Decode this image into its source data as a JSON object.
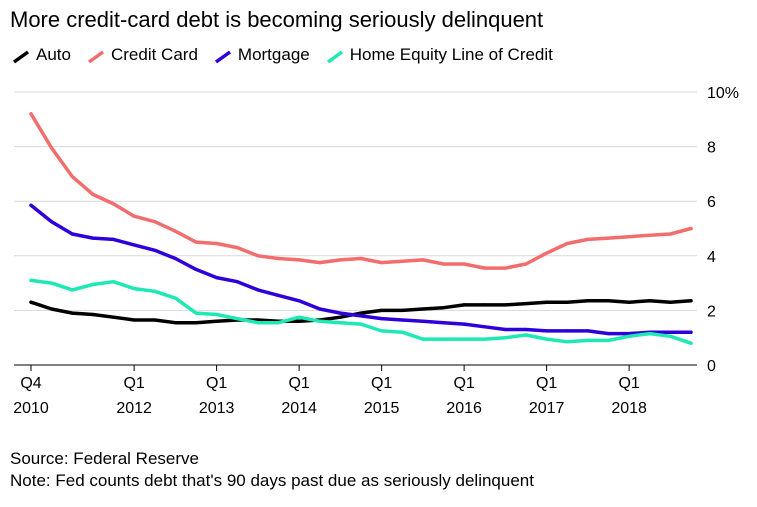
{
  "chart_data": {
    "type": "line",
    "title": "More credit-card debt is becoming seriously delinquent",
    "source": "Source: Federal Reserve",
    "note": "Note: Fed counts debt that's 90 days past due as seriously delinquent",
    "x_tick_labels": [
      {
        "period": "Q4",
        "year": "2010"
      },
      {
        "period": "Q1",
        "year": "2012"
      },
      {
        "period": "Q1",
        "year": "2013"
      },
      {
        "period": "Q1",
        "year": "2014"
      },
      {
        "period": "Q1",
        "year": "2015"
      },
      {
        "period": "Q1",
        "year": "2016"
      },
      {
        "period": "Q1",
        "year": "2017"
      },
      {
        "period": "Q1",
        "year": "2018"
      }
    ],
    "x_tick_positions": [
      "2010Q4",
      "2012Q1",
      "2013Q1",
      "2014Q1",
      "2015Q1",
      "2016Q1",
      "2017Q1",
      "2018Q1"
    ],
    "x": [
      "2010Q4",
      "2011Q1",
      "2011Q2",
      "2011Q3",
      "2011Q4",
      "2012Q1",
      "2012Q2",
      "2012Q3",
      "2012Q4",
      "2013Q1",
      "2013Q2",
      "2013Q3",
      "2013Q4",
      "2014Q1",
      "2014Q2",
      "2014Q3",
      "2014Q4",
      "2015Q1",
      "2015Q2",
      "2015Q3",
      "2015Q4",
      "2016Q1",
      "2016Q2",
      "2016Q3",
      "2016Q4",
      "2017Q1",
      "2017Q2",
      "2017Q3",
      "2017Q4",
      "2018Q1",
      "2018Q2",
      "2018Q3",
      "2018Q4"
    ],
    "y_ticks": [
      0,
      2,
      4,
      6,
      8,
      10
    ],
    "y_tick_labels": [
      "0",
      "2",
      "4",
      "6",
      "8",
      "10%"
    ],
    "ylim": [
      0,
      10
    ],
    "y_axis_side": "right",
    "grid": true,
    "legend_position": "top-left",
    "series": [
      {
        "name": "Auto",
        "color": "#000000",
        "values": [
          2.3,
          2.05,
          1.9,
          1.85,
          1.75,
          1.65,
          1.65,
          1.55,
          1.55,
          1.6,
          1.65,
          1.65,
          1.6,
          1.6,
          1.65,
          1.75,
          1.9,
          2.0,
          2.0,
          2.05,
          2.1,
          2.2,
          2.2,
          2.2,
          2.25,
          2.3,
          2.3,
          2.35,
          2.35,
          2.3,
          2.35,
          2.3,
          2.35
        ]
      },
      {
        "name": "Credit Card",
        "color": "#f26d6d",
        "values": [
          9.2,
          7.95,
          6.9,
          6.25,
          5.9,
          5.45,
          5.25,
          4.9,
          4.5,
          4.45,
          4.3,
          4.0,
          3.9,
          3.85,
          3.75,
          3.85,
          3.9,
          3.75,
          3.8,
          3.85,
          3.7,
          3.7,
          3.55,
          3.55,
          3.7,
          4.1,
          4.45,
          4.6,
          4.65,
          4.7,
          4.75,
          4.8,
          5.0
        ]
      },
      {
        "name": "Mortgage",
        "color": "#2f00d9",
        "values": [
          5.85,
          5.25,
          4.8,
          4.65,
          4.6,
          4.4,
          4.2,
          3.9,
          3.5,
          3.2,
          3.05,
          2.75,
          2.55,
          2.35,
          2.05,
          1.9,
          1.8,
          1.7,
          1.65,
          1.6,
          1.55,
          1.5,
          1.4,
          1.3,
          1.3,
          1.25,
          1.25,
          1.25,
          1.15,
          1.15,
          1.2,
          1.2,
          1.2
        ]
      },
      {
        "name": "Home Equity Line of Credit",
        "color": "#1ee8b5",
        "values": [
          3.1,
          3.0,
          2.75,
          2.95,
          3.05,
          2.8,
          2.7,
          2.45,
          1.9,
          1.85,
          1.7,
          1.55,
          1.55,
          1.75,
          1.6,
          1.55,
          1.5,
          1.25,
          1.2,
          0.95,
          0.95,
          0.95,
          0.95,
          1.0,
          1.1,
          0.95,
          0.85,
          0.9,
          0.9,
          1.05,
          1.15,
          1.05,
          0.8
        ]
      }
    ]
  }
}
